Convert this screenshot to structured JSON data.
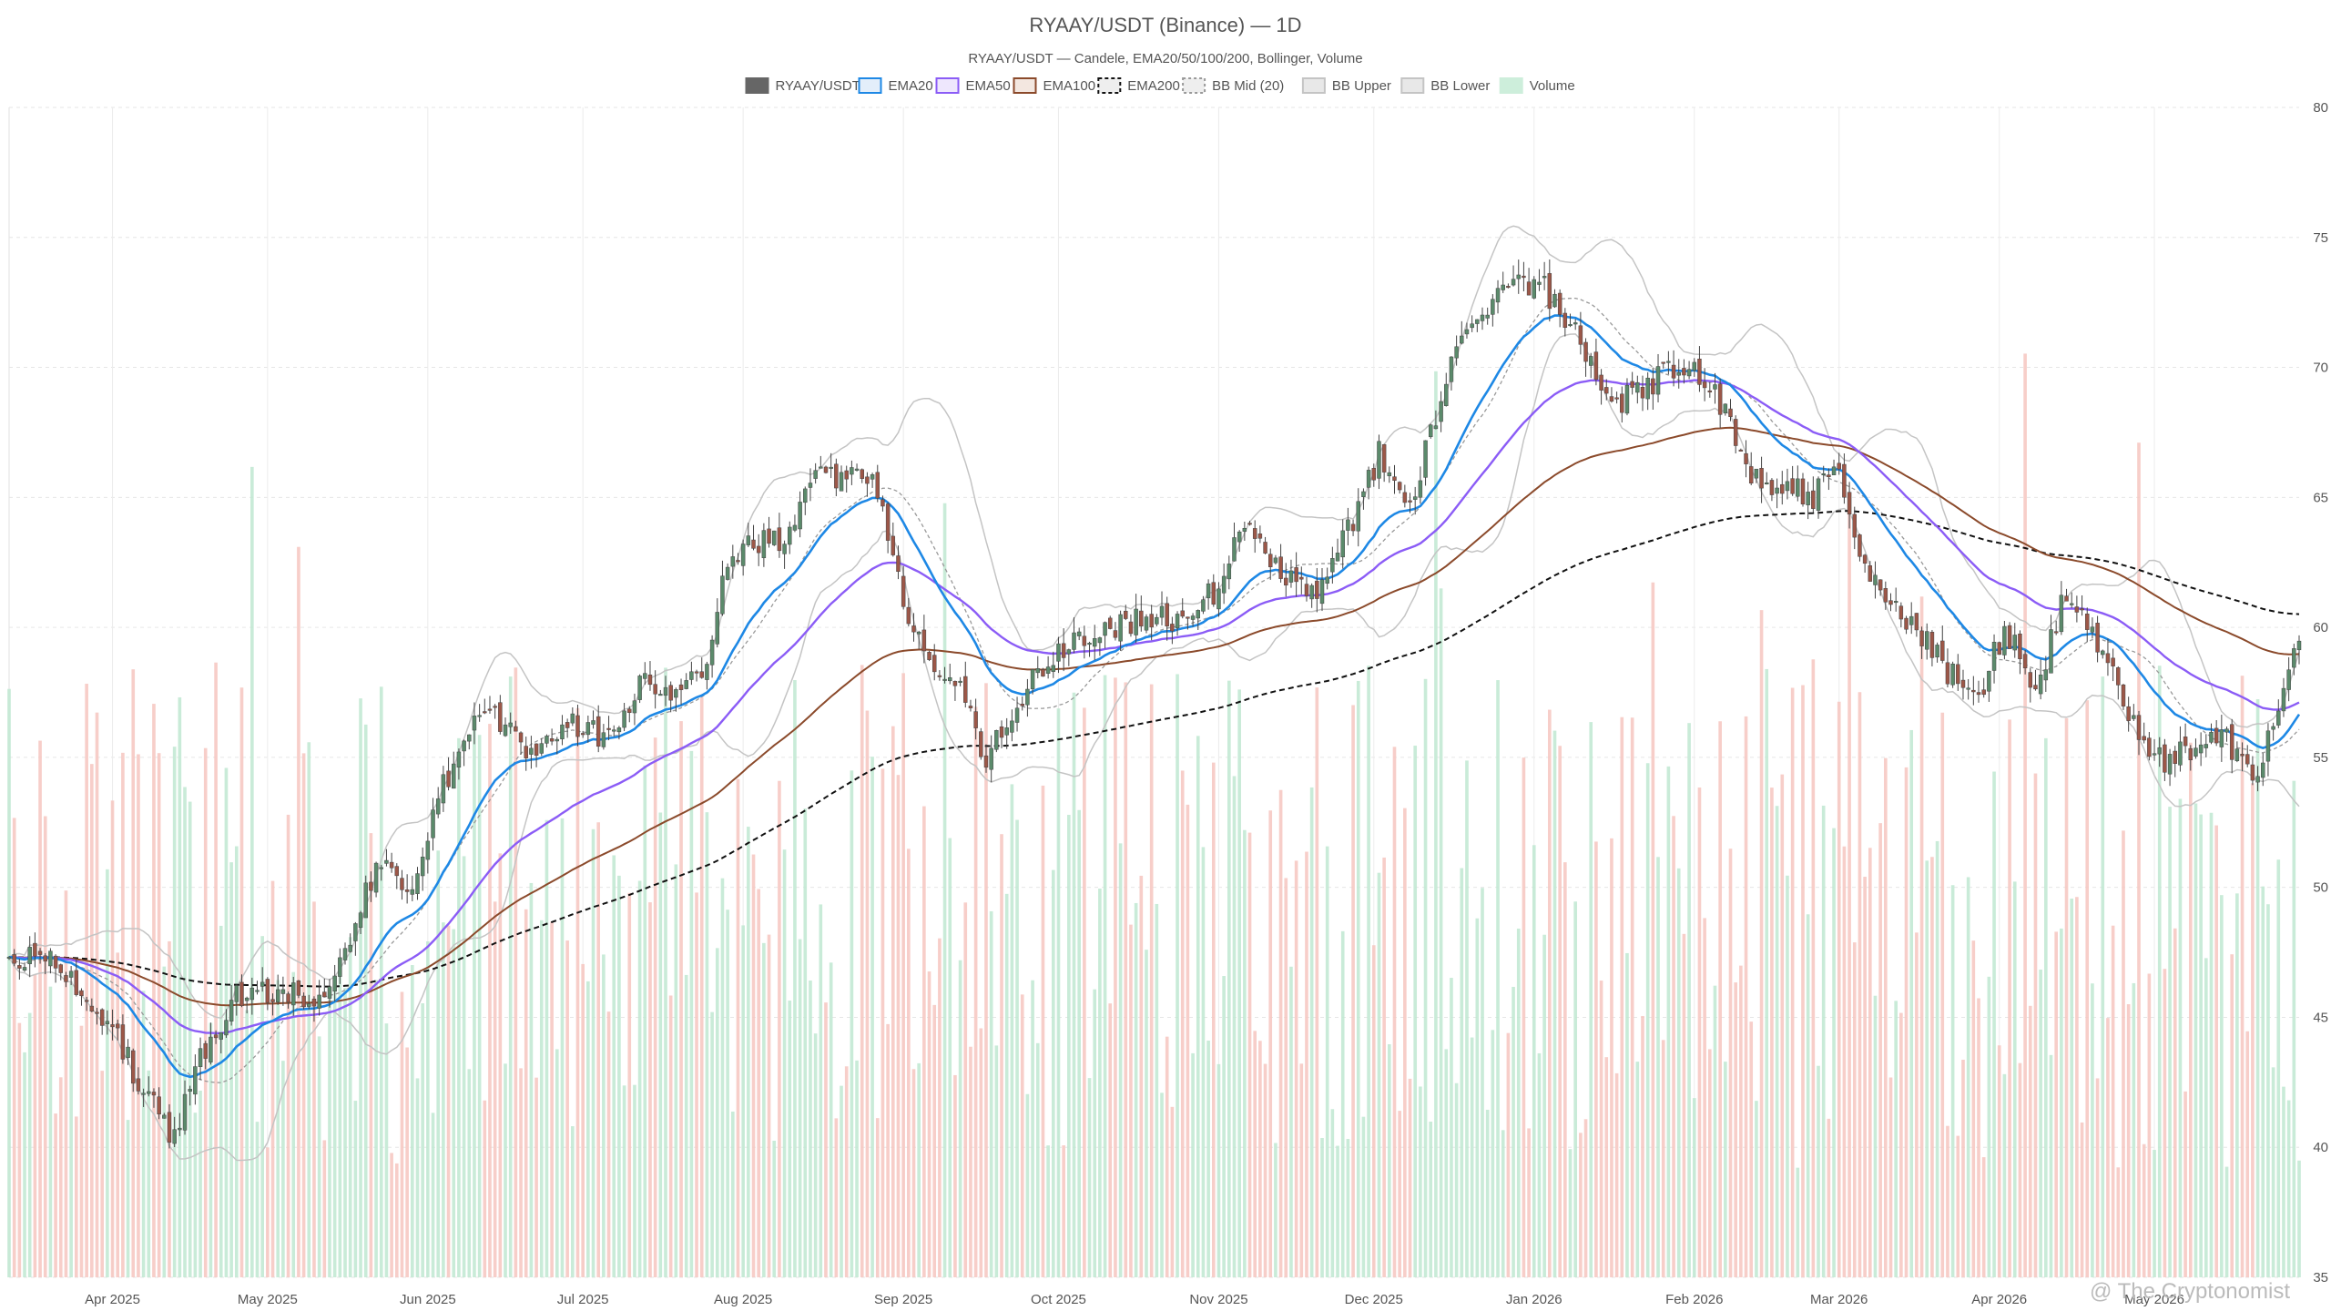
{
  "chart_data": {
    "type": "candlestick",
    "title": "RYAAY/USDT (Binance) — 1D",
    "subtitle": "RYAAY/USDT — Candele, EMA20/50/100/200, Bollinger, Volume",
    "watermark": "@ The Cryptonomist",
    "ylim": [
      35,
      80
    ],
    "y_ticks": [
      35,
      40,
      45,
      50,
      55,
      60,
      65,
      70,
      75,
      80
    ],
    "x_range": [
      "2025-03-12",
      "2026-05-29"
    ],
    "x_ticks": [
      {
        "date": "2025-04-01",
        "label": "Apr 2025"
      },
      {
        "date": "2025-05-01",
        "label": "May 2025"
      },
      {
        "date": "2025-06-01",
        "label": "Jun 2025"
      },
      {
        "date": "2025-07-01",
        "label": "Jul 2025"
      },
      {
        "date": "2025-08-01",
        "label": "Aug 2025"
      },
      {
        "date": "2025-09-01",
        "label": "Sep 2025"
      },
      {
        "date": "2025-10-01",
        "label": "Oct 2025"
      },
      {
        "date": "2025-11-01",
        "label": "Nov 2025"
      },
      {
        "date": "2025-12-01",
        "label": "Dec 2025"
      },
      {
        "date": "2026-01-01",
        "label": "Jan 2026"
      },
      {
        "date": "2026-02-01",
        "label": "Feb 2026"
      },
      {
        "date": "2026-03-01",
        "label": "Mar 2026"
      },
      {
        "date": "2026-04-01",
        "label": "Apr 2026"
      },
      {
        "date": "2026-05-01",
        "label": "May 2026"
      }
    ],
    "grid": true,
    "legend_position": "top-center",
    "legend": [
      {
        "label": "RYAAY/USDT",
        "style": "candle"
      },
      {
        "label": "EMA20",
        "style": "ema20"
      },
      {
        "label": "EMA50",
        "style": "ema50"
      },
      {
        "label": "EMA100",
        "style": "ema100"
      },
      {
        "label": "EMA200",
        "style": "ema200"
      },
      {
        "label": "BB Mid (20)",
        "style": "bbmid"
      },
      {
        "label": "BB Upper",
        "style": "bbband"
      },
      {
        "label": "BB Lower",
        "style": "bbband"
      },
      {
        "label": "Volume",
        "style": "volume"
      }
    ],
    "colors": {
      "up": "#5b8a6b",
      "down": "#9c5748",
      "wick": "#444444",
      "ema20": "#1e88e5",
      "ema50": "#8b5cf6",
      "ema100": "#8b4a2b",
      "ema200": "#111111",
      "bb_mid": "#999999",
      "bb_band": "#c4c4c4",
      "volume_up": "#bfe8d1",
      "volume_down": "#f6c6c0"
    },
    "close_anchors": [
      [
        "2025-03-12",
        47.3
      ],
      [
        "2025-03-20",
        47.1
      ],
      [
        "2025-03-28",
        45.7
      ],
      [
        "2025-04-03",
        43.8
      ],
      [
        "2025-04-08",
        41.8
      ],
      [
        "2025-04-13",
        40.4
      ],
      [
        "2025-04-18",
        43.5
      ],
      [
        "2025-04-25",
        45.9
      ],
      [
        "2025-05-03",
        46.0
      ],
      [
        "2025-05-10",
        45.8
      ],
      [
        "2025-05-16",
        47.4
      ],
      [
        "2025-05-22",
        50.8
      ],
      [
        "2025-05-29",
        50.1
      ],
      [
        "2025-06-04",
        53.8
      ],
      [
        "2025-06-10",
        56.2
      ],
      [
        "2025-06-16",
        56.5
      ],
      [
        "2025-06-22",
        55.0
      ],
      [
        "2025-06-28",
        56.6
      ],
      [
        "2025-07-05",
        55.7
      ],
      [
        "2025-07-12",
        57.8
      ],
      [
        "2025-07-20",
        57.7
      ],
      [
        "2025-07-24",
        58.0
      ],
      [
        "2025-07-28",
        62.0
      ],
      [
        "2025-08-03",
        63.3
      ],
      [
        "2025-08-09",
        63.1
      ],
      [
        "2025-08-15",
        65.7
      ],
      [
        "2025-08-21",
        66.0
      ],
      [
        "2025-08-27",
        65.3
      ],
      [
        "2025-09-01",
        61.0
      ],
      [
        "2025-09-07",
        58.8
      ],
      [
        "2025-09-13",
        57.2
      ],
      [
        "2025-09-17",
        55.0
      ],
      [
        "2025-09-22",
        56.8
      ],
      [
        "2025-09-27",
        58.2
      ],
      [
        "2025-10-04",
        59.6
      ],
      [
        "2025-10-10",
        59.9
      ],
      [
        "2025-10-17",
        60.4
      ],
      [
        "2025-10-24",
        60.3
      ],
      [
        "2025-10-31",
        61.3
      ],
      [
        "2025-11-06",
        63.9
      ],
      [
        "2025-11-13",
        62.2
      ],
      [
        "2025-11-20",
        61.1
      ],
      [
        "2025-11-26",
        63.6
      ],
      [
        "2025-12-02",
        66.7
      ],
      [
        "2025-12-08",
        64.7
      ],
      [
        "2025-12-12",
        67.6
      ],
      [
        "2025-12-16",
        70.0
      ],
      [
        "2025-12-22",
        72.3
      ],
      [
        "2025-12-28",
        73.4
      ],
      [
        "2026-01-03",
        73.0
      ],
      [
        "2026-01-09",
        71.2
      ],
      [
        "2026-01-15",
        68.6
      ],
      [
        "2026-01-21",
        68.9
      ],
      [
        "2026-01-27",
        70.1
      ],
      [
        "2026-02-01",
        70.0
      ],
      [
        "2026-02-06",
        68.6
      ],
      [
        "2026-02-12",
        65.8
      ],
      [
        "2026-02-18",
        65.5
      ],
      [
        "2026-02-24",
        64.9
      ],
      [
        "2026-02-28",
        66.4
      ],
      [
        "2026-03-05",
        62.5
      ],
      [
        "2026-03-10",
        61.0
      ],
      [
        "2026-03-16",
        59.9
      ],
      [
        "2026-03-22",
        58.3
      ],
      [
        "2026-03-28",
        57.4
      ],
      [
        "2026-04-02",
        59.9
      ],
      [
        "2026-04-08",
        57.7
      ],
      [
        "2026-04-14",
        61.3
      ],
      [
        "2026-04-20",
        59.2
      ],
      [
        "2026-04-26",
        56.8
      ],
      [
        "2026-05-03",
        54.6
      ],
      [
        "2026-05-09",
        55.6
      ],
      [
        "2026-05-15",
        55.8
      ],
      [
        "2026-05-20",
        54.1
      ],
      [
        "2026-05-24",
        56.4
      ],
      [
        "2026-05-29",
        59.3
      ]
    ]
  }
}
